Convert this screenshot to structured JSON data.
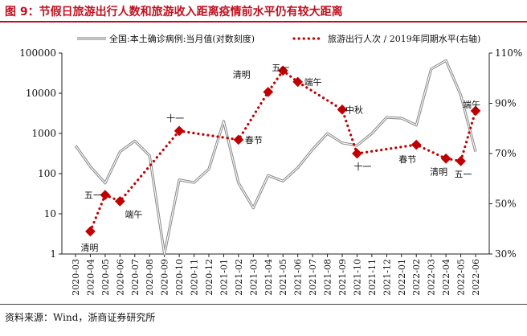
{
  "figure": {
    "title": "图 9：节假日旅游出行人数和旅游收入距离疫情前水平仍有较大距离",
    "source": "资料来源：Wind，浙商证券研究所"
  },
  "chart_data": {
    "type": "line",
    "categories": [
      "2020-03",
      "2020-04",
      "2020-05",
      "2020-06",
      "2020-07",
      "2020-08",
      "2020-09",
      "2020-10",
      "2020-11",
      "2020-12",
      "2021-01",
      "2021-02",
      "2021-03",
      "2021-04",
      "2021-05",
      "2021-06",
      "2021-07",
      "2021-08",
      "2021-09",
      "2021-10",
      "2021-11",
      "2021-12",
      "2022-01",
      "2022-02",
      "2022-03",
      "2022-04",
      "2022-05",
      "2022-06"
    ],
    "left_axis": {
      "scale": "log",
      "ylim": [
        1,
        100000
      ],
      "ticks": [
        "1",
        "10",
        "100",
        "1000",
        "10000",
        "100000"
      ]
    },
    "right_axis": {
      "ylim": [
        30,
        110
      ],
      "ticks": [
        "30%",
        "50%",
        "70%",
        "90%",
        "110%"
      ]
    },
    "grid": false,
    "legend_position": "top",
    "series": [
      {
        "name": "全国:本土确诊病例:当月值(对数刻度)",
        "axis": "left",
        "color": "#8c8c8c",
        "values": [
          500,
          150,
          58,
          350,
          650,
          280,
          1,
          70,
          60,
          130,
          2000,
          58,
          14,
          90,
          65,
          140,
          400,
          1000,
          580,
          500,
          1000,
          2500,
          2400,
          1600,
          40000,
          65000,
          9000,
          350
        ]
      },
      {
        "name": "旅游出行人次 / 2019年同期水平(右轴)",
        "axis": "right",
        "color": "#c00000",
        "points": [
          {
            "x": "2020-04",
            "y": 39,
            "label": "清明"
          },
          {
            "x": "2020-05",
            "y": 53.5,
            "label": "五一"
          },
          {
            "x": "2020-06",
            "y": 51,
            "label": "端午"
          },
          {
            "x": "2020-10",
            "y": 79,
            "label": "十一"
          },
          {
            "x": "2021-02",
            "y": 75.5,
            "label": "春节"
          },
          {
            "x": "2021-04",
            "y": 94.5,
            "label": "清明"
          },
          {
            "x": "2021-05",
            "y": 103,
            "label": "五一"
          },
          {
            "x": "2021-06",
            "y": 98.5,
            "label": "端午"
          },
          {
            "x": "2021-09",
            "y": 87.5,
            "label": "中秋"
          },
          {
            "x": "2021-10",
            "y": 70,
            "label": "十一"
          },
          {
            "x": "2022-02",
            "y": 73.5,
            "label": "春节"
          },
          {
            "x": "2022-04",
            "y": 68,
            "label": "清明"
          },
          {
            "x": "2022-05",
            "y": 67,
            "label": "五一"
          },
          {
            "x": "2022-06",
            "y": 87,
            "label": "端午"
          }
        ]
      }
    ]
  }
}
